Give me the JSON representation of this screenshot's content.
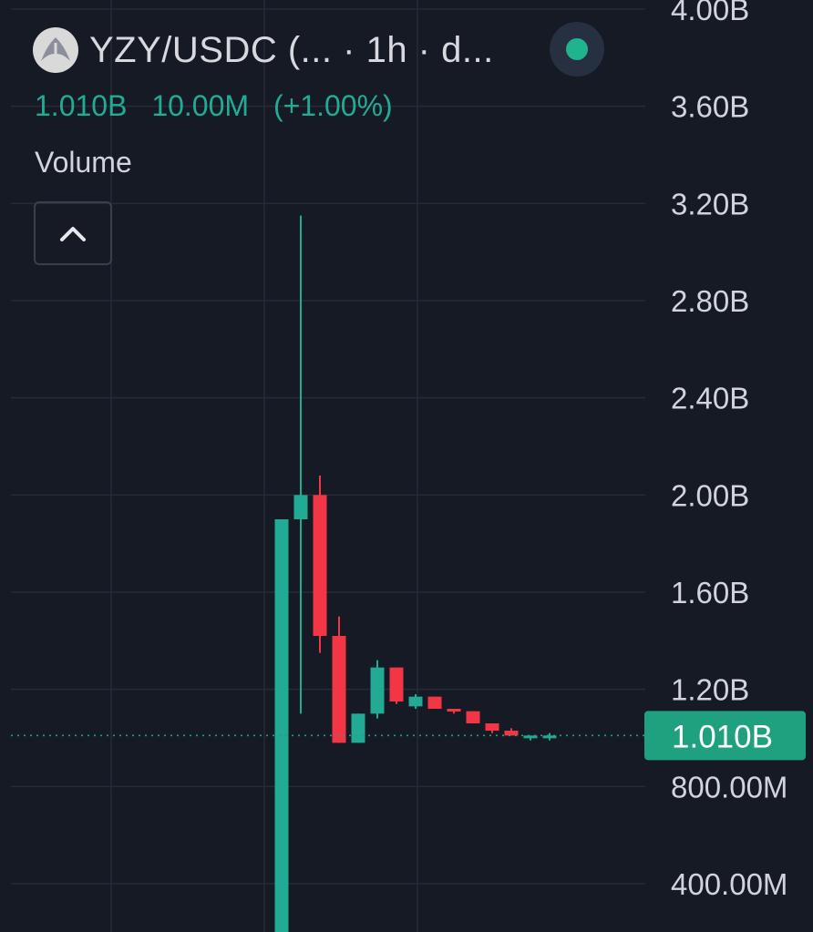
{
  "legend": {
    "symbol": "YZY/USDC (... · 1h · d...",
    "last_value": "1.010B",
    "change_abs": "10.00M",
    "change_pct": "(+1.00%)",
    "volume_label": "Volume"
  },
  "colors": {
    "background": "#161a25",
    "grid": "#262b38",
    "up": "#22ab94",
    "down": "#f23645",
    "axis_text": "#d1d4dc",
    "price_tag": "#1fa07f",
    "live_dot": "#1fb48e"
  },
  "icons": {
    "logo": "yzy-token-logo",
    "live": "live-status-dot-icon",
    "collapse": "chevron-up-icon"
  },
  "chart_data": {
    "type": "candlestick",
    "y_axis": {
      "visible_range": [
        0,
        4.0
      ],
      "tick_values": [
        0.4,
        0.8,
        1.2,
        1.6,
        2.0,
        2.4,
        2.8,
        3.2,
        3.6,
        4.0
      ],
      "tick_labels": [
        "400.00M",
        "800.00M",
        "1.20B",
        "1.60B",
        "2.00B",
        "2.40B",
        "2.80B",
        "3.20B",
        "3.60B",
        "4.00B"
      ],
      "units": "B"
    },
    "last_price": 1.01,
    "last_price_label": "1.010B",
    "grid": true,
    "candles": [
      {
        "open": 0.0,
        "high": 1.9,
        "low": 0.0,
        "close": 1.9
      },
      {
        "open": 1.9,
        "high": 3.15,
        "low": 1.1,
        "close": 2.0
      },
      {
        "open": 2.0,
        "high": 2.08,
        "low": 1.35,
        "close": 1.42
      },
      {
        "open": 1.42,
        "high": 1.5,
        "low": 0.98,
        "close": 0.98
      },
      {
        "open": 0.98,
        "high": 1.1,
        "low": 0.98,
        "close": 1.1
      },
      {
        "open": 1.1,
        "high": 1.32,
        "low": 1.08,
        "close": 1.29
      },
      {
        "open": 1.29,
        "high": 1.29,
        "low": 1.14,
        "close": 1.15
      },
      {
        "open": 1.13,
        "high": 1.18,
        "low": 1.12,
        "close": 1.17
      },
      {
        "open": 1.17,
        "high": 1.17,
        "low": 1.12,
        "close": 1.12
      },
      {
        "open": 1.12,
        "high": 1.12,
        "low": 1.1,
        "close": 1.11
      },
      {
        "open": 1.11,
        "high": 1.11,
        "low": 1.06,
        "close": 1.06
      },
      {
        "open": 1.06,
        "high": 1.06,
        "low": 1.02,
        "close": 1.03
      },
      {
        "open": 1.03,
        "high": 1.04,
        "low": 1.01,
        "close": 1.01
      },
      {
        "open": 1.0,
        "high": 1.01,
        "low": 0.99,
        "close": 1.01
      },
      {
        "open": 1.0,
        "high": 1.02,
        "low": 0.99,
        "close": 1.01
      }
    ]
  }
}
